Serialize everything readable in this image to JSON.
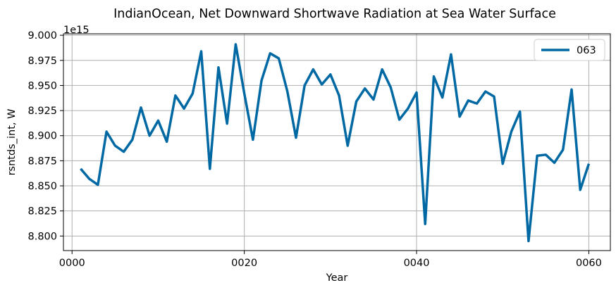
{
  "chart_data": {
    "type": "line",
    "title": "IndianOcean, Net Downward Shortwave Radiation at Sea Water Surface",
    "xlabel": "Year",
    "ylabel": "rsntds_int, W",
    "y_offset_label": "1e15",
    "y_scale": 1000000000000000.0,
    "xlim": [
      -1,
      62.5
    ],
    "ylim": [
      8.7855,
      9.0015
    ],
    "xticks": [
      0,
      20,
      40,
      60
    ],
    "xtick_labels": [
      "0000",
      "0020",
      "0040",
      "0060"
    ],
    "yticks": [
      8.8,
      8.825,
      8.85,
      8.875,
      8.9,
      8.925,
      8.95,
      8.975,
      9.0
    ],
    "ytick_labels": [
      "8.800",
      "8.825",
      "8.850",
      "8.875",
      "8.900",
      "8.925",
      "8.950",
      "8.975",
      "9.000"
    ],
    "grid": true,
    "legend_position": "top-right",
    "colors": {
      "series": "#0068a3",
      "grid": "#b0b0b0",
      "axes": "#000000"
    },
    "series": [
      {
        "name": "063",
        "x": [
          1,
          2,
          3,
          4,
          5,
          6,
          7,
          8,
          9,
          10,
          11,
          12,
          13,
          14,
          15,
          16,
          17,
          18,
          19,
          20,
          21,
          22,
          23,
          24,
          25,
          26,
          27,
          28,
          29,
          30,
          31,
          32,
          33,
          34,
          35,
          36,
          37,
          38,
          39,
          40,
          41,
          42,
          43,
          44,
          45,
          46,
          47,
          48,
          49,
          50,
          51,
          52,
          53,
          54,
          55,
          56,
          57,
          58,
          59,
          60
        ],
        "values": [
          8.867,
          8.857,
          8.851,
          8.904,
          8.89,
          8.884,
          8.896,
          8.928,
          8.9,
          8.915,
          8.894,
          8.94,
          8.927,
          8.942,
          8.984,
          8.867,
          8.968,
          8.912,
          8.991,
          8.942,
          8.896,
          8.955,
          8.982,
          8.977,
          8.944,
          8.898,
          8.95,
          8.966,
          8.951,
          8.961,
          8.94,
          8.89,
          8.934,
          8.947,
          8.936,
          8.966,
          8.948,
          8.916,
          8.927,
          8.943,
          8.812,
          8.959,
          8.938,
          8.981,
          8.919,
          8.935,
          8.932,
          8.944,
          8.939,
          8.872,
          8.904,
          8.924,
          8.795,
          8.88,
          8.881,
          8.873,
          8.886,
          8.946,
          8.846,
          8.872
        ]
      }
    ]
  }
}
